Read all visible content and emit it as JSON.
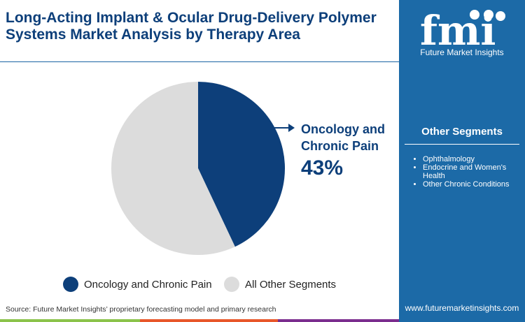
{
  "title": "Long-Acting Implant & Ocular Drug-Delivery Polymer Systems Market Analysis by Therapy Area",
  "brand": {
    "logo_text": "fmi",
    "name": "Future Market Insights",
    "url": "www.futuremarketinsights.com"
  },
  "other_segments": {
    "heading": "Other Segments",
    "items": [
      "Ophthalmology",
      "Endocrine and Women's Health",
      "Other Chronic Conditions"
    ]
  },
  "source": "Source: Future Market Insights’ proprietary forecasting model and primary research",
  "colors": {
    "primary": "#0d3f7a",
    "secondary": "#dcdcdc",
    "panel": "#1c6aa7",
    "bar": [
      "#8bc34a",
      "#e8572a",
      "#7b2d8e"
    ]
  },
  "chart_data": {
    "type": "pie",
    "slices": [
      {
        "label": "Oncology and Chronic Pain",
        "value": 43,
        "color": "#0d3f7a"
      },
      {
        "label": "All Other Segments",
        "value": 57,
        "color": "#dcdcdc"
      }
    ],
    "callout": {
      "label": "Oncology and Chronic Pain",
      "value_text": "43%"
    },
    "legend_position": "bottom"
  }
}
